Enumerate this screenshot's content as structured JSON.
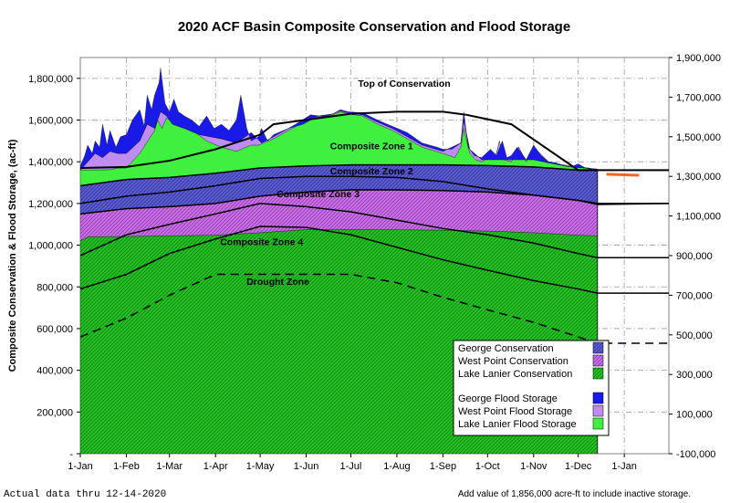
{
  "chart_data": {
    "type": "area",
    "title": "2020 ACF Basin Composite Conservation and Flood Storage",
    "ylabel": "Composite Conservation & Flood Storage, (ac-ft)",
    "ylim": [
      0,
      1900000
    ],
    "y2lim": [
      -100000,
      1900000
    ],
    "y_ticks": [
      0,
      200000,
      400000,
      600000,
      800000,
      1000000,
      1200000,
      1400000,
      1600000,
      1800000
    ],
    "y_tick_labels": [
      "-",
      "200,000",
      "400,000",
      "600,000",
      "800,000",
      "1,000,000",
      "1,200,000",
      "1,400,000",
      "1,600,000",
      "1,800,000"
    ],
    "y2_ticks": [
      -100000,
      100000,
      300000,
      500000,
      700000,
      900000,
      1100000,
      1300000,
      1500000,
      1700000,
      1900000
    ],
    "y2_tick_labels": [
      "-100,000",
      "100,000",
      "300,000",
      "500,000",
      "700,000",
      "900,000",
      "1,100,000",
      "1,300,000",
      "1,500,000",
      "1,700,000",
      "1,900,000"
    ],
    "x_tick_labels": [
      "1-Jan",
      "1-Feb",
      "1-Mar",
      "1-Apr",
      "1-May",
      "1-Jun",
      "1-Jul",
      "1-Aug",
      "1-Sep",
      "1-Oct",
      "1-Nov",
      "1-Dec",
      "1-Jan"
    ],
    "xlim_days": [
      0,
      396
    ],
    "actual_end_day": 348,
    "zone_labels": [
      {
        "text": "Top of Conservation",
        "day": 218,
        "value": 1760000
      },
      {
        "text": "Composite Zone 1",
        "day": 196,
        "value": 1460000
      },
      {
        "text": "Composite Zone 2",
        "day": 196,
        "value": 1340000
      },
      {
        "text": "Composite Zone 3",
        "day": 160,
        "value": 1230000
      },
      {
        "text": "Composite Zone 4",
        "day": 122,
        "value": 1000000
      },
      {
        "text": "Drought Zone",
        "day": 133,
        "value": 810000
      }
    ],
    "series": [
      {
        "name": "Lake Lanier Conservation",
        "role": "stack-base",
        "color": "#22c422",
        "x": [
          0,
          5,
          31,
          60,
          91,
          121,
          152,
          182,
          213,
          244,
          274,
          305,
          335,
          348
        ],
        "values": [
          1020000,
          1040000,
          1042000,
          1045000,
          1048000,
          1060000,
          1075000,
          1075000,
          1074000,
          1072000,
          1068000,
          1060000,
          1048000,
          1045000
        ]
      },
      {
        "name": "West Point Conservation",
        "role": "stack-top",
        "color": "#cf6cf0",
        "x": [
          0,
          31,
          60,
          91,
          121,
          152,
          182,
          213,
          244,
          274,
          305,
          335,
          348
        ],
        "values": [
          1150000,
          1175000,
          1185000,
          1200000,
          1235000,
          1255000,
          1265000,
          1265000,
          1262000,
          1255000,
          1240000,
          1215000,
          1195000
        ]
      },
      {
        "name": "George Conservation",
        "role": "stack-top",
        "color": "#5a5ad8",
        "x": [
          0,
          31,
          60,
          91,
          121,
          152,
          182,
          213,
          244,
          274,
          305,
          335,
          348
        ],
        "values": [
          1285000,
          1315000,
          1325000,
          1345000,
          1370000,
          1380000,
          1385000,
          1385000,
          1385000,
          1382000,
          1375000,
          1360000,
          1355000
        ]
      },
      {
        "name": "Lake Lanier Flood Storage",
        "role": "stack-top",
        "color": "#3ff03f",
        "x": [
          0,
          20,
          25,
          31,
          40,
          50,
          52,
          55,
          58,
          60,
          70,
          85,
          95,
          105,
          115,
          120,
          130,
          145,
          155,
          165,
          175,
          180,
          190,
          200,
          210,
          230,
          244,
          252,
          256,
          258,
          262,
          266,
          270,
          280,
          282,
          285,
          290,
          295,
          300,
          305,
          315,
          325,
          335,
          342,
          348
        ],
        "values": [
          1360000,
          1362000,
          1370000,
          1370000,
          1440000,
          1550000,
          1600000,
          1560000,
          1610000,
          1600000,
          1580000,
          1500000,
          1470000,
          1450000,
          1480000,
          1480000,
          1510000,
          1570000,
          1620000,
          1610000,
          1640000,
          1630000,
          1620000,
          1580000,
          1550000,
          1470000,
          1440000,
          1420000,
          1470000,
          1560000,
          1440000,
          1410000,
          1400000,
          1440000,
          1500000,
          1410000,
          1400000,
          1470000,
          1400000,
          1470000,
          1400000,
          1385000,
          1375000,
          1370000,
          1360000
        ]
      },
      {
        "name": "West Point Flood Storage",
        "role": "stack-top",
        "color": "#c08cf0",
        "x": [
          0,
          5,
          10,
          15,
          20,
          25,
          31,
          40,
          45,
          50,
          54,
          58,
          62,
          70,
          80,
          95,
          105,
          115,
          122,
          130,
          145,
          155,
          165,
          175,
          180,
          190,
          200,
          210,
          230,
          244,
          256,
          258,
          262,
          270,
          285,
          305,
          315,
          330,
          348
        ],
        "values": [
          1360000,
          1400000,
          1440000,
          1420000,
          1450000,
          1440000,
          1440000,
          1500000,
          1580000,
          1560000,
          1640000,
          1620000,
          1580000,
          1560000,
          1530000,
          1510000,
          1490000,
          1540000,
          1490000,
          1520000,
          1580000,
          1625000,
          1615000,
          1645000,
          1635000,
          1625000,
          1590000,
          1560000,
          1480000,
          1450000,
          1490000,
          1600000,
          1460000,
          1410000,
          1410000,
          1410000,
          1395000,
          1375000,
          1365000
        ]
      },
      {
        "name": "George Flood Storage",
        "role": "stack-top",
        "color": "#1a1ae8",
        "x": [
          0,
          3,
          5,
          8,
          10,
          13,
          15,
          18,
          20,
          24,
          27,
          31,
          35,
          40,
          43,
          45,
          48,
          50,
          53,
          54,
          57,
          60,
          63,
          66,
          70,
          75,
          80,
          85,
          90,
          95,
          100,
          105,
          108,
          112,
          115,
          120,
          122,
          126,
          130,
          140,
          150,
          160,
          170,
          175,
          180,
          190,
          200,
          210,
          220,
          230,
          240,
          244,
          250,
          256,
          258,
          261,
          265,
          270,
          276,
          280,
          284,
          287,
          290,
          294,
          300,
          305,
          310,
          315,
          320,
          325,
          330,
          335,
          340,
          345,
          348
        ],
        "values": [
          1380000,
          1430000,
          1480000,
          1440000,
          1500000,
          1470000,
          1580000,
          1480000,
          1550000,
          1470000,
          1520000,
          1530000,
          1600000,
          1650000,
          1570000,
          1720000,
          1650000,
          1720000,
          1780000,
          1850000,
          1680000,
          1640000,
          1700000,
          1640000,
          1620000,
          1600000,
          1570000,
          1620000,
          1560000,
          1580000,
          1550000,
          1600000,
          1720000,
          1560000,
          1500000,
          1520000,
          1560000,
          1500000,
          1530000,
          1560000,
          1580000,
          1620000,
          1630000,
          1650000,
          1640000,
          1635000,
          1600000,
          1570000,
          1540000,
          1490000,
          1470000,
          1460000,
          1460000,
          1490000,
          1640000,
          1470000,
          1430000,
          1420000,
          1460000,
          1430000,
          1500000,
          1420000,
          1430000,
          1470000,
          1410000,
          1480000,
          1430000,
          1400000,
          1395000,
          1380000,
          1375000,
          1390000,
          1370000,
          1360000,
          1355000
        ]
      }
    ],
    "rule_curves": [
      {
        "name": "Top of Conservation",
        "style": "solid",
        "width": 2,
        "x": [
          0,
          31,
          60,
          91,
          121,
          130,
          182,
          213,
          244,
          260,
          290,
          335,
          396
        ],
        "values": [
          1370000,
          1375000,
          1405000,
          1460000,
          1530000,
          1580000,
          1630000,
          1640000,
          1640000,
          1625000,
          1580000,
          1360000,
          1360000
        ]
      },
      {
        "name": "Composite Zone 1 boundary",
        "style": "solid",
        "width": 1.5,
        "x": [
          0,
          31,
          60,
          91,
          121,
          152,
          182,
          213,
          244,
          274,
          305,
          335,
          396
        ],
        "values": [
          1285000,
          1315000,
          1325000,
          1345000,
          1370000,
          1380000,
          1385000,
          1385000,
          1385000,
          1382000,
          1375000,
          1360000,
          1360000
        ]
      },
      {
        "name": "Composite Zone 2 boundary",
        "style": "solid",
        "width": 1.5,
        "x": [
          0,
          31,
          60,
          91,
          121,
          152,
          182,
          213,
          244,
          274,
          305,
          335,
          348,
          396
        ],
        "values": [
          1200000,
          1235000,
          1255000,
          1285000,
          1320000,
          1330000,
          1330000,
          1325000,
          1305000,
          1270000,
          1240000,
          1215000,
          1200000,
          1200000
        ]
      },
      {
        "name": "Composite Zone 3 boundary",
        "style": "solid",
        "width": 1.5,
        "x": [
          0,
          31,
          60,
          91,
          121,
          152,
          182,
          213,
          244,
          274,
          305,
          335,
          348,
          396
        ],
        "values": [
          1150000,
          1175000,
          1185000,
          1200000,
          1235000,
          1255000,
          1265000,
          1265000,
          1262000,
          1255000,
          1240000,
          1215000,
          1195000,
          1200000
        ]
      },
      {
        "name": "Composite Zone 4 boundary",
        "style": "solid",
        "width": 1.5,
        "x": [
          0,
          31,
          60,
          91,
          121,
          152,
          182,
          213,
          244,
          274,
          305,
          335,
          348,
          396
        ],
        "values": [
          950000,
          1050000,
          1100000,
          1150000,
          1200000,
          1185000,
          1160000,
          1120000,
          1080000,
          1050000,
          1010000,
          960000,
          940000,
          940000
        ]
      },
      {
        "name": "Drought Zone boundary",
        "style": "solid",
        "width": 1.5,
        "x": [
          0,
          31,
          60,
          91,
          121,
          152,
          182,
          213,
          244,
          274,
          305,
          335,
          348,
          396
        ],
        "values": [
          790000,
          860000,
          960000,
          1030000,
          1090000,
          1085000,
          1050000,
          990000,
          930000,
          880000,
          830000,
          790000,
          770000,
          770000
        ]
      },
      {
        "name": "Inactive / lower curve",
        "style": "dashed",
        "width": 1.5,
        "x": [
          0,
          31,
          60,
          91,
          121,
          152,
          182,
          213,
          244,
          274,
          305,
          335,
          348,
          396
        ],
        "values": [
          560000,
          650000,
          760000,
          860000,
          860000,
          860000,
          860000,
          820000,
          750000,
          690000,
          630000,
          560000,
          530000,
          530000
        ]
      }
    ],
    "forecast": {
      "name": "Forecast",
      "color": "#f26522",
      "x": [
        354,
        376
      ],
      "values": [
        1340000,
        1335000
      ]
    },
    "legend": {
      "position": "bottom-right",
      "items": [
        {
          "label": "George Conservation",
          "color": "#5a5ad8",
          "hatched": true
        },
        {
          "label": "West Point Conservation",
          "color": "#cf6cf0",
          "hatched": true
        },
        {
          "label": "Lake Lanier Conservation",
          "color": "#22c422",
          "hatched": true
        },
        {
          "label": "George Flood Storage",
          "color": "#1a1ae8",
          "hatched": false
        },
        {
          "label": "West Point Flood Storage",
          "color": "#c08cf0",
          "hatched": false
        },
        {
          "label": "Lake Lanier Flood Storage",
          "color": "#3ff03f",
          "hatched": false
        }
      ]
    }
  },
  "footer": {
    "actual_note": "Actual data thru 12-14-2020",
    "inactive_note": "Add value of 1,856,000 acre-ft to include inactive storage."
  }
}
